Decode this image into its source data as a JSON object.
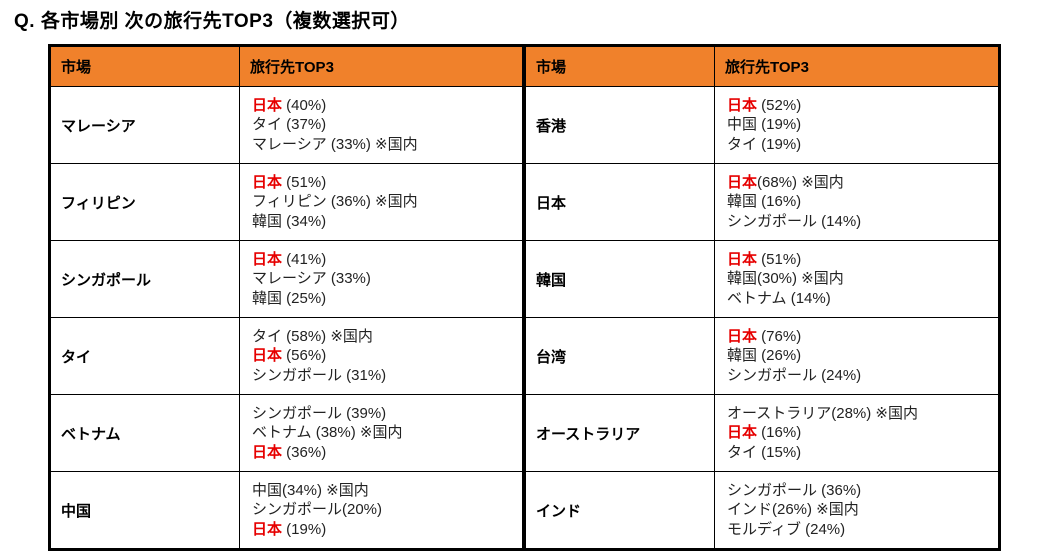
{
  "title": "Q. 各市場別 次の旅行先TOP3（複数選択可）",
  "headers": {
    "market": "市場",
    "top3": "旅行先TOP3"
  },
  "colors": {
    "header_bg": "#F0812B",
    "highlight": "#E60000",
    "border": "#000000"
  },
  "tables": [
    {
      "rows": [
        {
          "market": "マレーシア",
          "lines": [
            {
              "red": "日本",
              "text": " (40%)"
            },
            {
              "red": "",
              "text": "タイ (37%)"
            },
            {
              "red": "",
              "text": "マレーシア (33%) ※国内"
            }
          ]
        },
        {
          "market": "フィリピン",
          "lines": [
            {
              "red": "日本",
              "text": " (51%)"
            },
            {
              "red": "",
              "text": "フィリピン (36%) ※国内"
            },
            {
              "red": "",
              "text": "韓国 (34%)"
            }
          ]
        },
        {
          "market": "シンガポール",
          "lines": [
            {
              "red": "日本",
              "text": " (41%)"
            },
            {
              "red": "",
              "text": "マレーシア (33%)"
            },
            {
              "red": "",
              "text": "韓国 (25%)"
            }
          ]
        },
        {
          "market": "タイ",
          "lines": [
            {
              "red": "",
              "text": "タイ (58%) ※国内"
            },
            {
              "red": "日本",
              "text": " (56%)"
            },
            {
              "red": "",
              "text": "シンガポール (31%)"
            }
          ]
        },
        {
          "market": "ベトナム",
          "lines": [
            {
              "red": "",
              "text": "シンガポール (39%)"
            },
            {
              "red": "",
              "text": "ベトナム (38%) ※国内"
            },
            {
              "red": "日本",
              "text": " (36%)"
            }
          ]
        },
        {
          "market": "中国",
          "lines": [
            {
              "red": "",
              "text": "中国(34%) ※国内"
            },
            {
              "red": "",
              "text": "シンガポール(20%)"
            },
            {
              "red": "日本",
              "text": " (19%)"
            }
          ]
        }
      ]
    },
    {
      "rows": [
        {
          "market": "香港",
          "lines": [
            {
              "red": "日本",
              "text": " (52%)"
            },
            {
              "red": "",
              "text": "中国 (19%)"
            },
            {
              "red": "",
              "text": "タイ (19%)"
            }
          ]
        },
        {
          "market": "日本",
          "lines": [
            {
              "red": "日本",
              "text": "(68%) ※国内"
            },
            {
              "red": "",
              "text": "韓国 (16%)"
            },
            {
              "red": "",
              "text": "シンガポール (14%)"
            }
          ]
        },
        {
          "market": "韓国",
          "lines": [
            {
              "red": "日本",
              "text": " (51%)"
            },
            {
              "red": "",
              "text": "韓国(30%) ※国内"
            },
            {
              "red": "",
              "text": "ベトナム (14%)"
            }
          ]
        },
        {
          "market": "台湾",
          "lines": [
            {
              "red": "日本",
              "text": " (76%)"
            },
            {
              "red": "",
              "text": "韓国 (26%)"
            },
            {
              "red": "",
              "text": "シンガポール (24%)"
            }
          ]
        },
        {
          "market": "オーストラリア",
          "lines": [
            {
              "red": "",
              "text": "オーストラリア(28%) ※国内"
            },
            {
              "red": "日本",
              "text": " (16%)"
            },
            {
              "red": "",
              "text": "タイ (15%)"
            }
          ]
        },
        {
          "market": "インド",
          "lines": [
            {
              "red": "",
              "text": "シンガポール (36%)"
            },
            {
              "red": "",
              "text": "インド(26%) ※国内"
            },
            {
              "red": "",
              "text": "モルディブ (24%)"
            }
          ]
        }
      ]
    }
  ]
}
